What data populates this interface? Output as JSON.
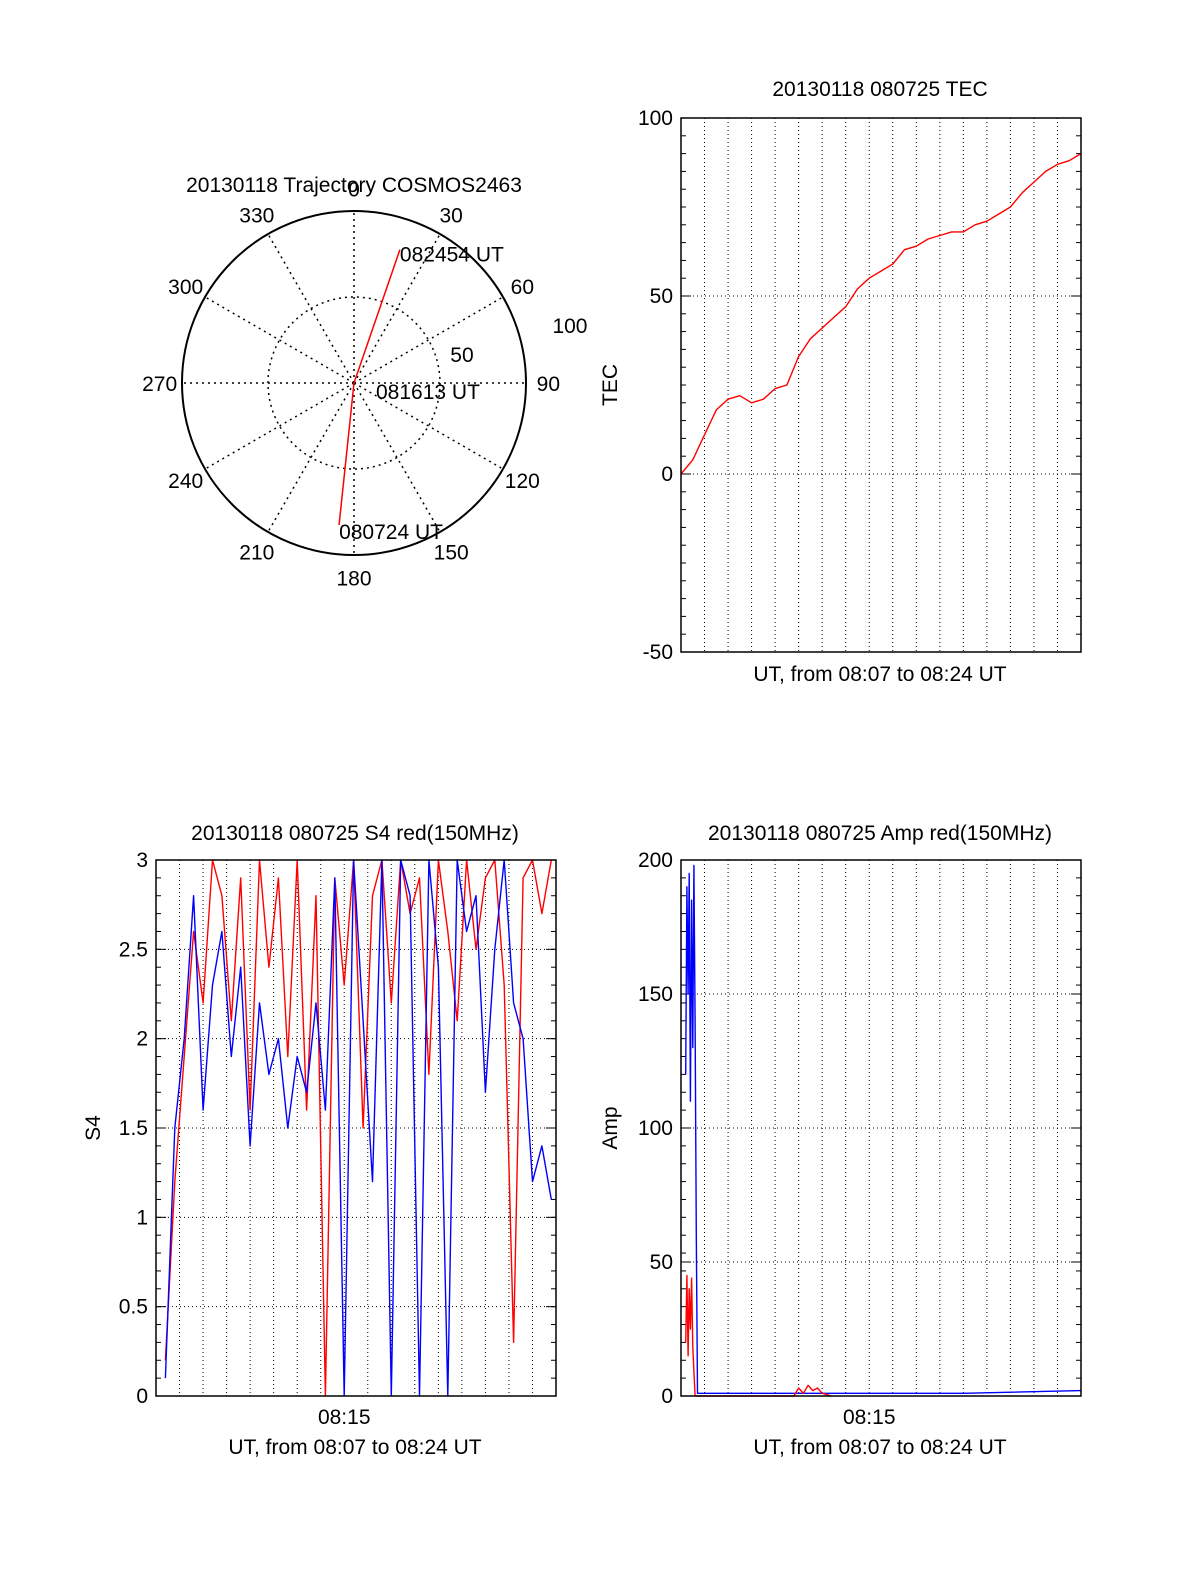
{
  "colors": {
    "red": "#ff0000",
    "blue": "#0000ff",
    "axis": "#000000",
    "grid": "#000000"
  },
  "chart_data": [
    {
      "id": "trajectory",
      "type": "polar",
      "title": "20130118 Trajectory COSMOS2463",
      "azimuth_labels": [
        "0",
        "30",
        "60",
        "90",
        "120",
        "150",
        "180",
        "210",
        "240",
        "270",
        "300",
        "330"
      ],
      "radial_labels": [
        "50",
        "100"
      ],
      "r_max": 100,
      "grid": true,
      "track": {
        "color": "red",
        "points": [
          {
            "label": "080724 UT",
            "az": 186,
            "r": 83
          },
          {
            "label": "081613 UT",
            "az": 0,
            "r": 0
          },
          {
            "label": "082454 UT",
            "az": 19,
            "r": 82
          }
        ]
      }
    },
    {
      "id": "tec",
      "type": "line",
      "title": "20130118 080725 TEC",
      "xlabel": "UT, from 08:07 to 08:24 UT",
      "ylabel": "TEC",
      "ylim": [
        -50,
        100
      ],
      "yticks": [
        "100",
        "50",
        "0",
        "-50"
      ],
      "grid": true,
      "series": [
        {
          "color": "red",
          "x": [
            0,
            0.5,
            1,
            1.5,
            2,
            2.5,
            3,
            3.5,
            4,
            4.5,
            5,
            5.5,
            6,
            6.5,
            7,
            7.5,
            8,
            8.5,
            9,
            9.5,
            10,
            10.5,
            11,
            11.5,
            12,
            12.5,
            13,
            13.5,
            14,
            14.5,
            15,
            15.5,
            16,
            16.5,
            17
          ],
          "y": [
            0,
            4,
            11,
            18,
            21,
            22,
            20,
            21,
            24,
            25,
            33,
            38,
            41,
            44,
            47,
            52,
            55,
            57,
            59,
            63,
            64,
            66,
            67,
            68,
            68,
            70,
            71,
            73,
            75,
            79,
            82,
            85,
            87,
            88,
            90
          ]
        }
      ]
    },
    {
      "id": "s4",
      "type": "line",
      "title": "20130118 080725 S4 red(150MHz)",
      "xlabel": "UT, from 08:07 to 08:24 UT",
      "ylabel": "S4",
      "ylim": [
        0,
        3
      ],
      "yticks": [
        "3",
        "2.5",
        "2",
        "1.5",
        "1",
        "0.5",
        "0"
      ],
      "xticks": [
        "08:15"
      ],
      "grid": true,
      "series": [
        {
          "color": "red",
          "x": [
            0.4,
            0.8,
            1.2,
            1.6,
            2.0,
            2.4,
            2.8,
            3.2,
            3.6,
            4.0,
            4.4,
            4.8,
            5.2,
            5.6,
            6.0,
            6.4,
            6.8,
            7.2,
            7.6,
            8.0,
            8.4,
            8.8,
            9.2,
            9.6,
            10.0,
            10.4,
            10.8,
            11.2,
            11.6,
            12.0,
            12.4,
            12.8,
            13.2,
            13.6,
            14.0,
            14.4,
            14.8,
            15.2,
            15.6,
            16.0,
            16.4,
            16.8
          ],
          "y": [
            0.2,
            1.2,
            1.9,
            2.6,
            2.2,
            3.0,
            2.8,
            2.1,
            2.9,
            1.6,
            3.0,
            2.4,
            2.9,
            1.9,
            3.0,
            1.6,
            2.8,
            0.0,
            2.9,
            2.3,
            3.0,
            1.5,
            2.8,
            3.0,
            2.2,
            3.0,
            2.7,
            2.9,
            1.8,
            3.0,
            2.6,
            2.1,
            3.0,
            2.5,
            2.9,
            3.0,
            2.3,
            0.3,
            2.9,
            3.0,
            2.7,
            3.0
          ]
        },
        {
          "color": "blue",
          "x": [
            0.4,
            0.8,
            1.2,
            1.6,
            2.0,
            2.4,
            2.8,
            3.2,
            3.6,
            4.0,
            4.4,
            4.8,
            5.2,
            5.6,
            6.0,
            6.4,
            6.8,
            7.2,
            7.6,
            8.0,
            8.4,
            8.8,
            9.2,
            9.6,
            10.0,
            10.4,
            10.8,
            11.2,
            11.6,
            12.0,
            12.4,
            12.8,
            13.2,
            13.6,
            14.0,
            14.4,
            14.8,
            15.2,
            15.6,
            16.0,
            16.4,
            16.8
          ],
          "y": [
            0.1,
            1.5,
            2.0,
            2.8,
            1.6,
            2.3,
            2.6,
            1.9,
            2.4,
            1.4,
            2.2,
            1.8,
            2.0,
            1.5,
            1.9,
            1.7,
            2.2,
            1.6,
            2.9,
            0.0,
            3.0,
            2.1,
            1.2,
            3.0,
            0.0,
            3.0,
            2.8,
            0.0,
            3.0,
            2.4,
            0.0,
            3.0,
            2.6,
            2.8,
            1.7,
            2.5,
            3.0,
            2.2,
            2.0,
            1.2,
            1.4,
            1.1
          ]
        }
      ]
    },
    {
      "id": "amp",
      "type": "line",
      "title": "20130118 080725 Amp red(150MHz)",
      "xlabel": "UT, from 08:07 to 08:24 UT",
      "ylabel": "Amp",
      "ylim": [
        0,
        200
      ],
      "yticks": [
        "200",
        "150",
        "100",
        "50",
        "0"
      ],
      "xticks": [
        "08:15"
      ],
      "grid": true,
      "series": [
        {
          "color": "blue",
          "x": [
            0.2,
            0.25,
            0.3,
            0.35,
            0.4,
            0.45,
            0.5,
            0.55,
            0.6,
            0.65,
            0.7,
            1.0,
            4.0,
            8.0,
            12.0,
            17.0
          ],
          "y": [
            120,
            190,
            150,
            195,
            110,
            185,
            130,
            198,
            140,
            60,
            1,
            1,
            1,
            1,
            1,
            2
          ]
        },
        {
          "color": "red",
          "x": [
            0.2,
            0.25,
            0.3,
            0.35,
            0.4,
            0.45,
            0.5,
            0.6,
            4.8,
            5.0,
            5.2,
            5.4,
            5.6,
            5.8,
            6.0,
            6.4
          ],
          "y": [
            20,
            45,
            15,
            40,
            25,
            44,
            18,
            0,
            0,
            3,
            1,
            4,
            2,
            3,
            1,
            0
          ]
        }
      ]
    }
  ]
}
